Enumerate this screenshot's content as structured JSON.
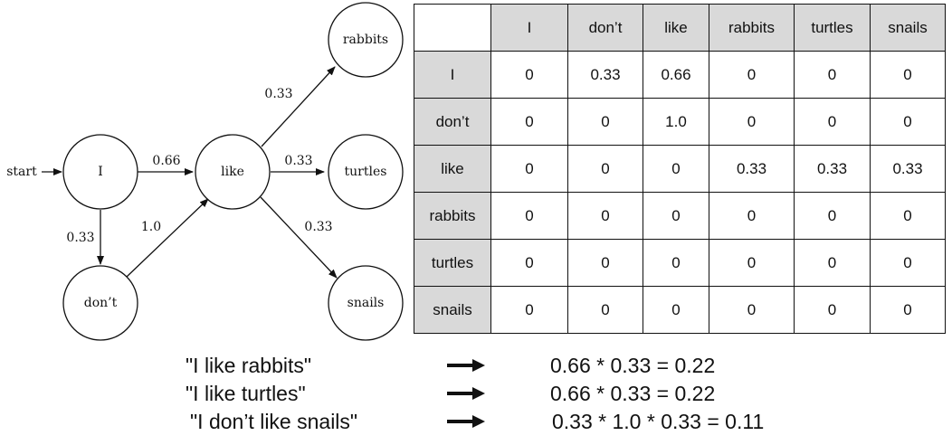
{
  "diagram": {
    "start_label": "start",
    "nodes": {
      "I": "I",
      "dont": "don’t",
      "like": "like",
      "rabbits": "rabbits",
      "turtles": "turtles",
      "snails": "snails"
    },
    "edges": {
      "I_like": "0.66",
      "I_dont": "0.33",
      "dont_like": "1.0",
      "like_rabbits": "0.33",
      "like_turtles": "0.33",
      "like_snails": "0.33"
    }
  },
  "matrix": {
    "columns": [
      "I",
      "don’t",
      "like",
      "rabbits",
      "turtles",
      "snails"
    ],
    "rows": [
      {
        "label": "I",
        "cells": [
          "0",
          "0.33",
          "0.66",
          "0",
          "0",
          "0"
        ]
      },
      {
        "label": "don’t",
        "cells": [
          "0",
          "0",
          "1.0",
          "0",
          "0",
          "0"
        ]
      },
      {
        "label": "like",
        "cells": [
          "0",
          "0",
          "0",
          "0.33",
          "0.33",
          "0.33"
        ]
      },
      {
        "label": "rabbits",
        "cells": [
          "0",
          "0",
          "0",
          "0",
          "0",
          "0"
        ]
      },
      {
        "label": "turtles",
        "cells": [
          "0",
          "0",
          "0",
          "0",
          "0",
          "0"
        ]
      },
      {
        "label": "snails",
        "cells": [
          "0",
          "0",
          "0",
          "0",
          "0",
          "0"
        ]
      }
    ]
  },
  "examples": [
    {
      "sentence": "\"I like rabbits\"",
      "calc": "0.66 * 0.33 = 0.22"
    },
    {
      "sentence": "\"I like turtles\"",
      "calc": "0.66 * 0.33 = 0.22"
    },
    {
      "sentence": "\"I don’t like snails\"",
      "calc": "0.33 * 1.0 * 0.33 = 0.11"
    }
  ]
}
